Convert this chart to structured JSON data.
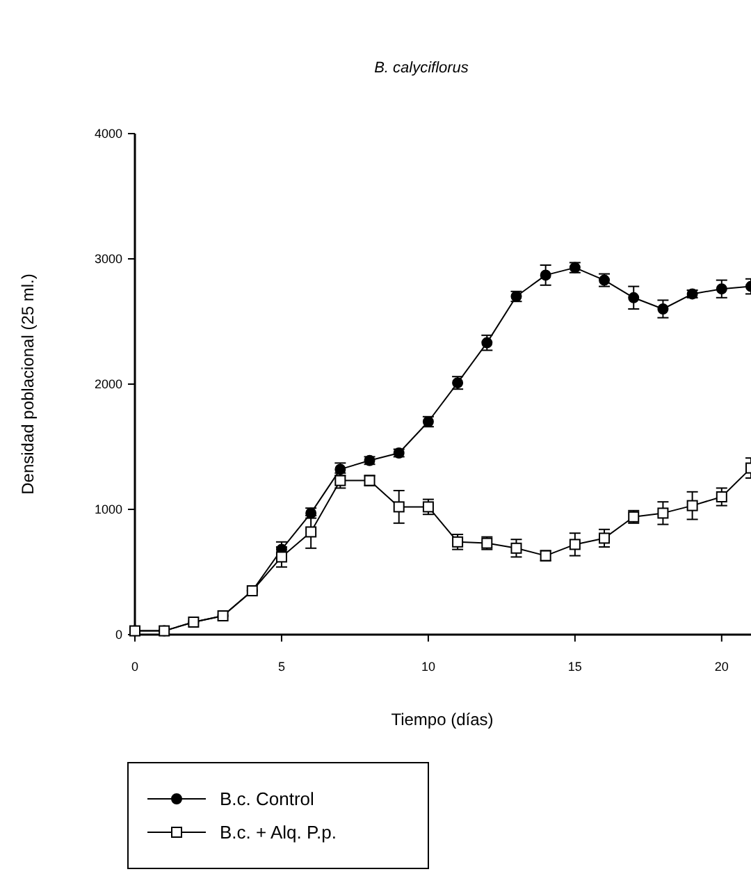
{
  "chart_data": {
    "type": "line",
    "title": "B. calyciflorus",
    "xlabel": "Tiempo (días)",
    "ylabel": "Densidad poblacional  (25 ml.)",
    "x": [
      0,
      1,
      2,
      3,
      4,
      5,
      6,
      7,
      8,
      9,
      10,
      11,
      12,
      13,
      14,
      15,
      16,
      17,
      18,
      19,
      20,
      21
    ],
    "xlim": [
      0,
      21
    ],
    "xticks": [
      0,
      5,
      10,
      15,
      20
    ],
    "ylim": [
      0,
      4000
    ],
    "yticks": [
      0,
      1000,
      2000,
      3000,
      4000
    ],
    "grid": false,
    "legend": "bottom",
    "line_style": "solid",
    "series": [
      {
        "name": "B.c. Control",
        "color": "#000000",
        "marker": "circle",
        "values": [
          30,
          30,
          100,
          150,
          350,
          680,
          970,
          1320,
          1390,
          1450,
          1700,
          2010,
          2330,
          2700,
          2870,
          2930,
          2830,
          2690,
          2600,
          2720,
          2760,
          2780
        ],
        "errors": [
          null,
          null,
          null,
          null,
          null,
          60,
          40,
          50,
          30,
          30,
          40,
          50,
          60,
          40,
          80,
          40,
          50,
          90,
          70,
          30,
          70,
          60
        ]
      },
      {
        "name": "B.c. + Alq. P.p.",
        "color": "#ffffff",
        "marker": "square",
        "values": [
          30,
          30,
          100,
          150,
          350,
          620,
          820,
          1230,
          1230,
          1020,
          1020,
          740,
          730,
          690,
          630,
          720,
          770,
          940,
          970,
          1030,
          1100,
          1330
        ],
        "errors": [
          null,
          null,
          null,
          null,
          null,
          80,
          130,
          60,
          40,
          130,
          60,
          60,
          50,
          70,
          40,
          90,
          70,
          50,
          90,
          110,
          70,
          80
        ]
      }
    ]
  }
}
